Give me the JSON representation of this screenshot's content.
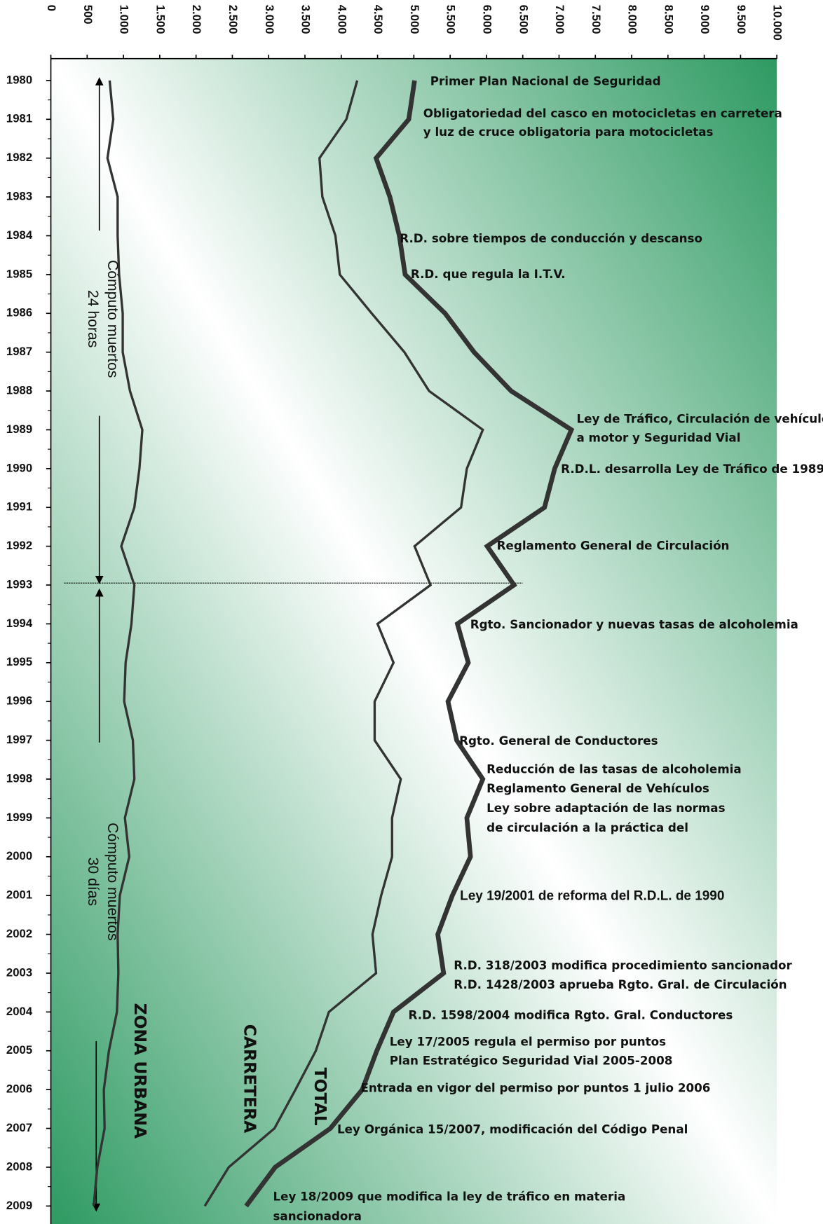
{
  "chart_data": {
    "type": "line",
    "orientation": "vertical",
    "categories": [
      "1980",
      "1981",
      "1982",
      "1983",
      "1984",
      "1985",
      "1986",
      "1987",
      "1988",
      "1989",
      "1990",
      "1991",
      "1992",
      "1993",
      "1994",
      "1995",
      "1996",
      "1997",
      "1998",
      "1999",
      "2000",
      "2001",
      "2002",
      "2003",
      "2004",
      "2005",
      "2006",
      "2007",
      "2008",
      "2009"
    ],
    "series": [
      {
        "name": "ZONA URBANA",
        "color": "#333333",
        "values": [
          810,
          860,
          780,
          920,
          920,
          940,
          990,
          990,
          1090,
          1260,
          1220,
          1150,
          970,
          1150,
          1110,
          1030,
          1010,
          1130,
          1150,
          1020,
          1080,
          950,
          920,
          930,
          910,
          800,
          730,
          740,
          640,
          590
        ]
      },
      {
        "name": "CARRETERA",
        "color": "#333333",
        "values": [
          4220,
          4070,
          3700,
          3740,
          3920,
          3980,
          4420,
          4870,
          5210,
          5950,
          5730,
          5650,
          5010,
          5230,
          4500,
          4720,
          4460,
          4460,
          4820,
          4700,
          4700,
          4550,
          4430,
          4480,
          3830,
          3650,
          3370,
          3080,
          2450,
          2120
        ]
      },
      {
        "name": "TOTAL",
        "color": "#333333",
        "values": [
          5010,
          4930,
          4480,
          4670,
          4800,
          4880,
          5430,
          5830,
          6340,
          7170,
          6940,
          6800,
          6010,
          6380,
          5600,
          5750,
          5470,
          5590,
          5950,
          5730,
          5780,
          5530,
          5330,
          5410,
          4720,
          4490,
          4290,
          3850,
          3090,
          2690
        ]
      }
    ],
    "xlim": [
      0,
      10000
    ],
    "xticks": [
      0,
      500,
      {
        "value": 1000,
        "label": "1.000"
      },
      {
        "value": 1500,
        "label": "1.500"
      },
      {
        "value": 2000,
        "label": "2.000"
      },
      {
        "value": 2500,
        "label": "2.500"
      },
      {
        "value": 3000,
        "label": "3.000"
      },
      {
        "value": 3500,
        "label": "3.500"
      },
      {
        "value": 4000,
        "label": "4.000"
      },
      {
        "value": 4500,
        "label": "4.500"
      },
      {
        "value": 5000,
        "label": "5.000"
      },
      {
        "value": 5500,
        "label": "5.500"
      },
      {
        "value": 6000,
        "label": "6.000"
      },
      {
        "value": 6500,
        "label": "6.500"
      },
      {
        "value": 7000,
        "label": "7.000"
      },
      {
        "value": 7500,
        "label": "7.500"
      },
      {
        "value": 8000,
        "label": "8.000"
      },
      {
        "value": 8500,
        "label": "8.500"
      },
      {
        "value": 9000,
        "label": "9.000"
      },
      {
        "value": 9500,
        "label": "9.500"
      },
      {
        "value": 10000,
        "label": "10.000"
      }
    ],
    "side_labels": [
      [
        "Cómputo muertos",
        "24 horas"
      ],
      [
        "Cómputo muertos",
        "30 días"
      ]
    ],
    "annotations": [
      "Primer Plan Nacional de Seguridad",
      "Obligatoriedad del casco en motocicletas en carretera",
      "y luz de cruce obligatoria para motocicletas",
      "R.D. sobre tiempos de conducción y descanso",
      "R.D. que regula la I.T.V.",
      "Ley de Tráfico, Circulación de  vehículos",
      "a motor y Seguridad Vial",
      "R.D.L. desarrolla Ley de Tráfico de 1989",
      "Reglamento General de Circulación",
      "Rgto. Sancionador y nuevas tasas de alcoholemia",
      "Rgto. General de Conductores",
      "Reducción de las tasas de alcoholemia",
      "Reglamento General de Vehículos",
      "Ley sobre adaptación de las normas",
      "de circulación a la práctica del",
      "Ley 19/2001 de reforma del R.D.L. de 1990",
      "R.D. 318/2003 modifica procedimiento sancionador",
      "R.D. 1428/2003 aprueba Rgto. Gral. de Circulación",
      "R.D. 1598/2004 modifica Rgto. Gral. Conductores",
      "Ley 17/2005 regula el permiso por puntos",
      "Plan Estratégico Seguridad Vial 2005-2008",
      "Entrada en vigor del permiso por puntos 1 julio 2006",
      "Ley Orgánica 15/2007, modificación del Código Penal",
      "Ley 18/2009 que modifica la ley de tráfico en materia",
      "sancionadora"
    ]
  }
}
